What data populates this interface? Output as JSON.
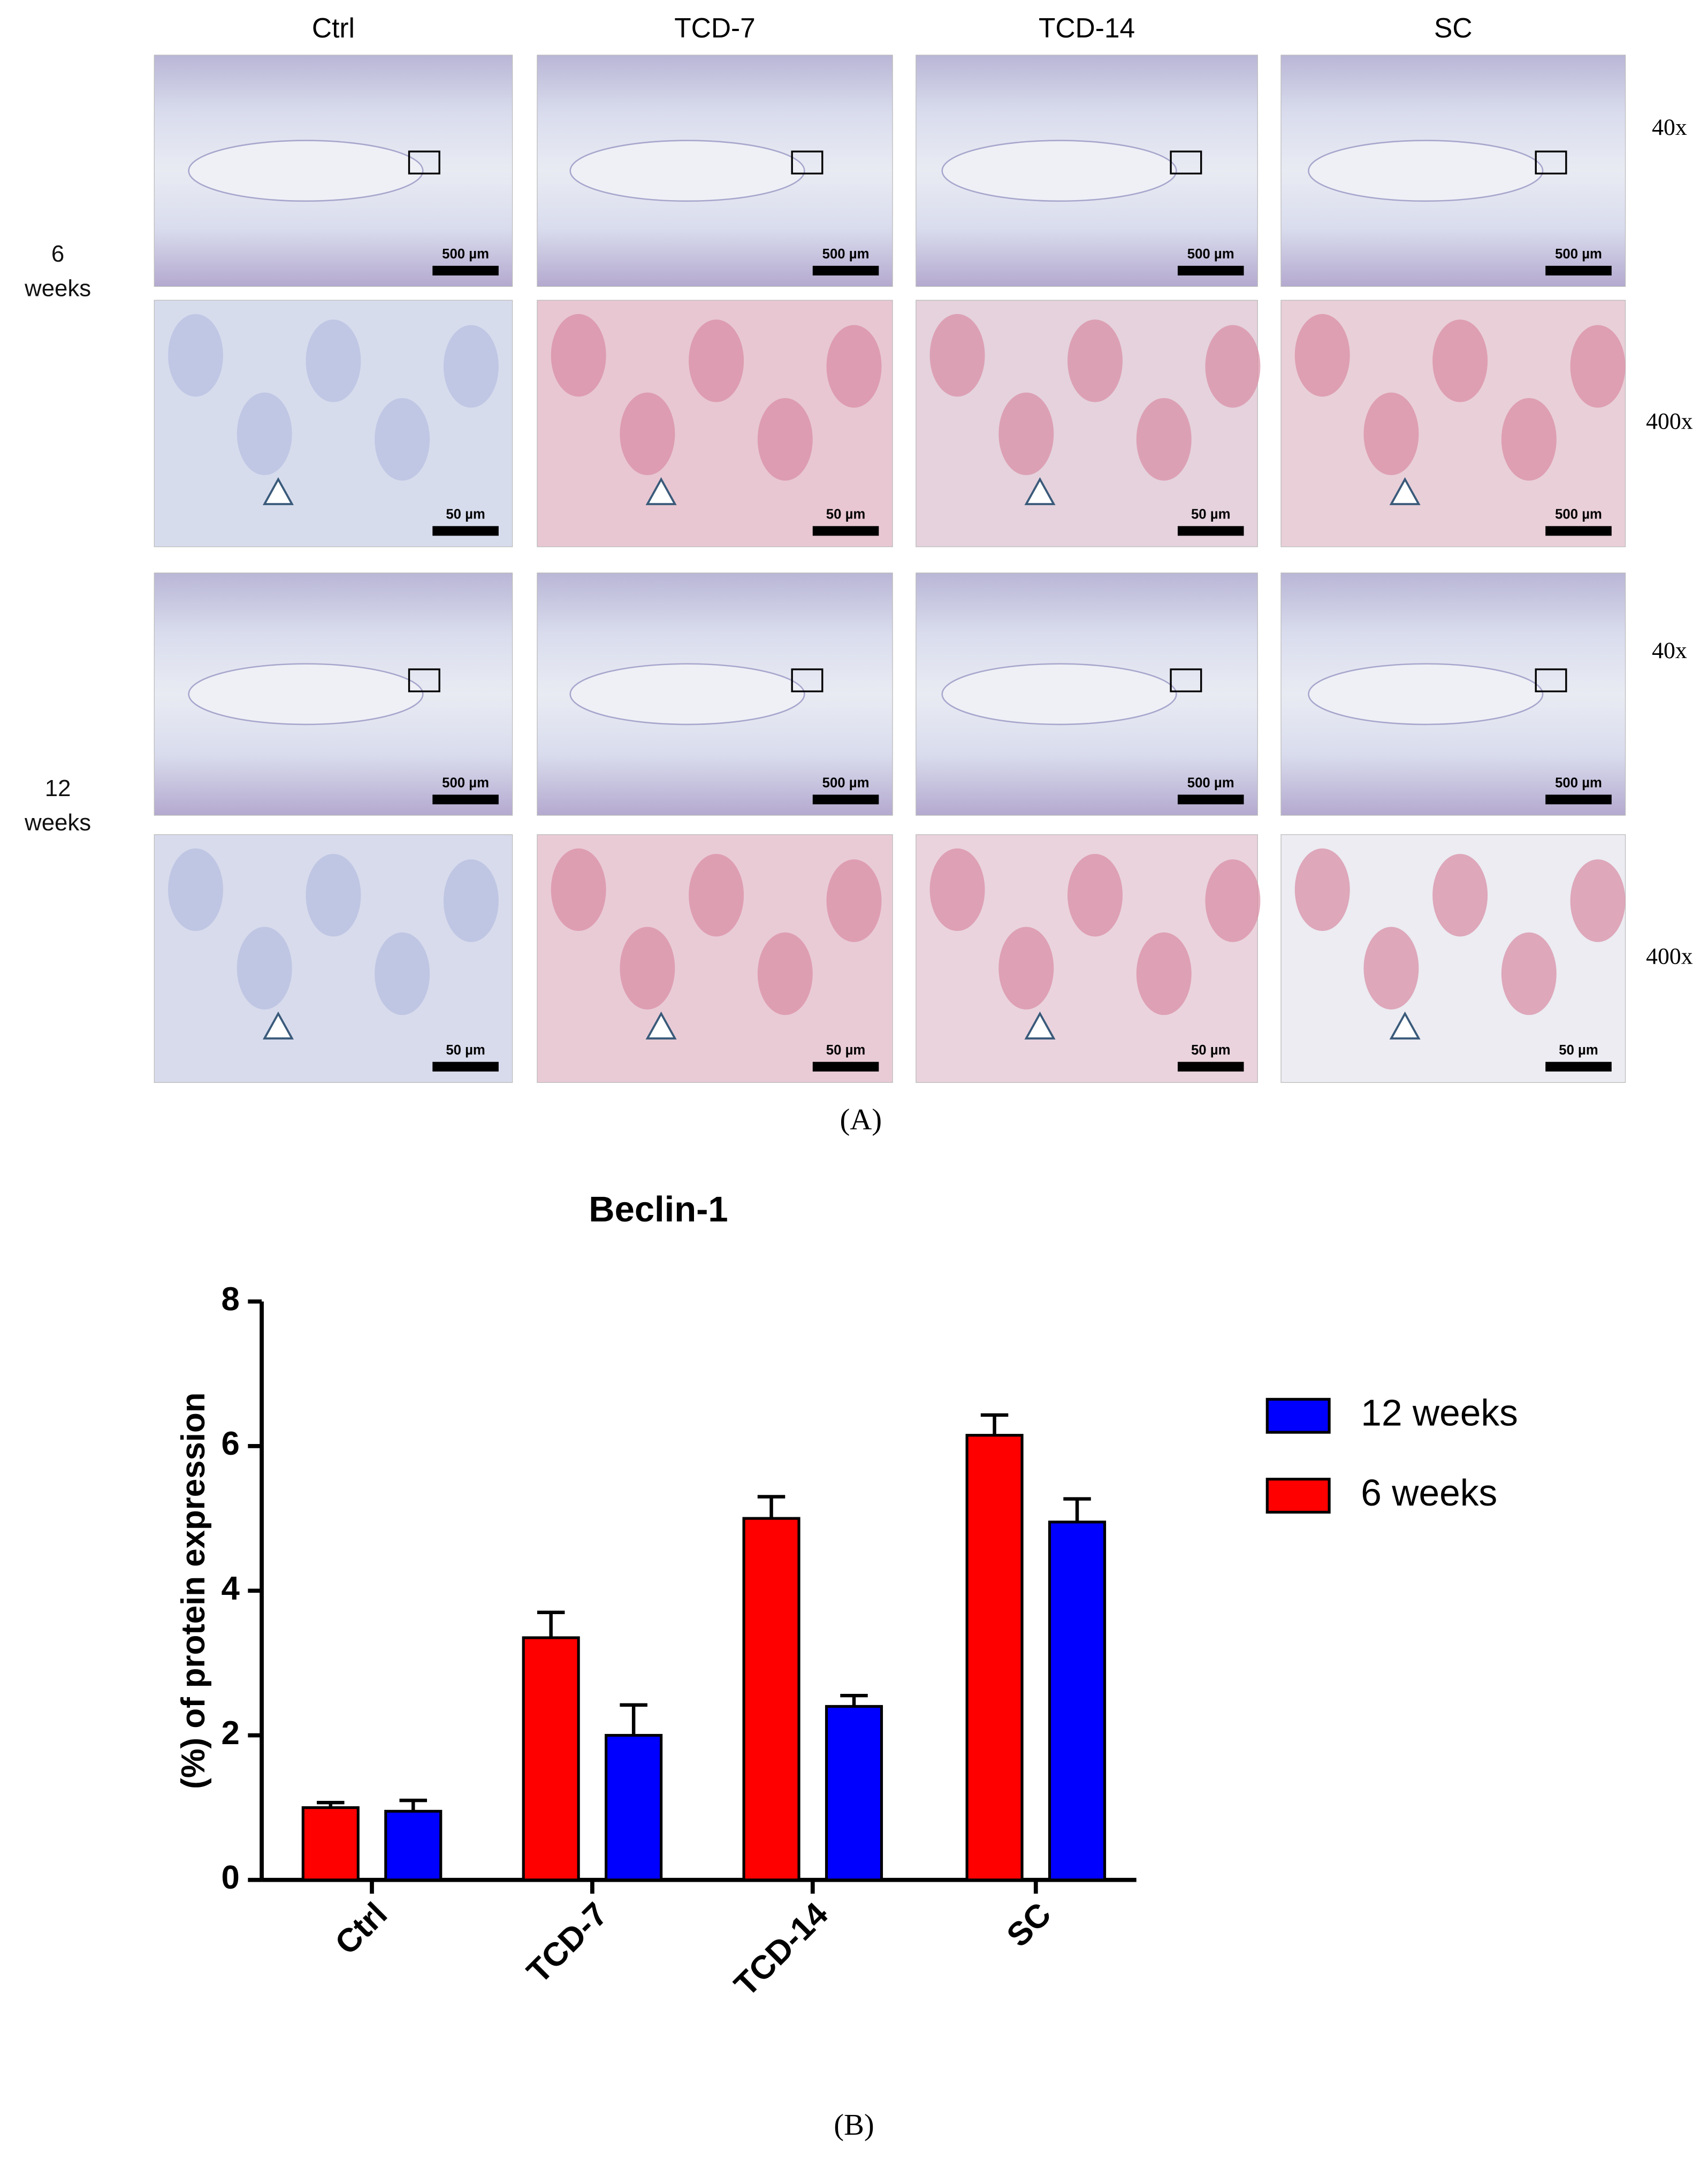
{
  "panel_a": {
    "columns": [
      "Ctrl",
      "TCD-7",
      "TCD-14",
      "SC"
    ],
    "rows": [
      "6 weeks",
      "12 weeks"
    ],
    "magnifications": [
      "40x",
      "400x",
      "40x",
      "400x"
    ],
    "scale_bars": [
      [
        "500 µm",
        "500 µm",
        "500 µm",
        "500 µm"
      ],
      [
        "50 µm",
        "50 µm",
        "50 µm",
        "500 µm"
      ],
      [
        "500 µm",
        "500 µm",
        "500 µm",
        "500 µm"
      ],
      [
        "50 µm",
        "50 µm",
        "50 µm",
        "50 µm"
      ]
    ],
    "label": "(A)"
  },
  "chart_data": {
    "type": "bar",
    "title": "Beclin-1",
    "y_label": "(%) of protein expression",
    "categories": [
      "Ctrl",
      "TCD-7",
      "TCD-14",
      "SC"
    ],
    "series": [
      {
        "name": "12 weeks",
        "color": "#0000ff",
        "values": [
          0.95,
          2.0,
          2.4,
          4.95
        ],
        "errors": [
          0.15,
          0.42,
          0.15,
          0.32
        ]
      },
      {
        "name": "6 weeks",
        "color": "#ff0000",
        "values": [
          1.0,
          3.35,
          5.0,
          6.15
        ],
        "errors": [
          0.07,
          0.35,
          0.3,
          0.28
        ]
      }
    ],
    "ylim": [
      0,
      8
    ],
    "yticks": [
      0,
      2,
      4,
      6,
      8
    ],
    "legend": "right"
  },
  "panel_b_label": "(B)"
}
